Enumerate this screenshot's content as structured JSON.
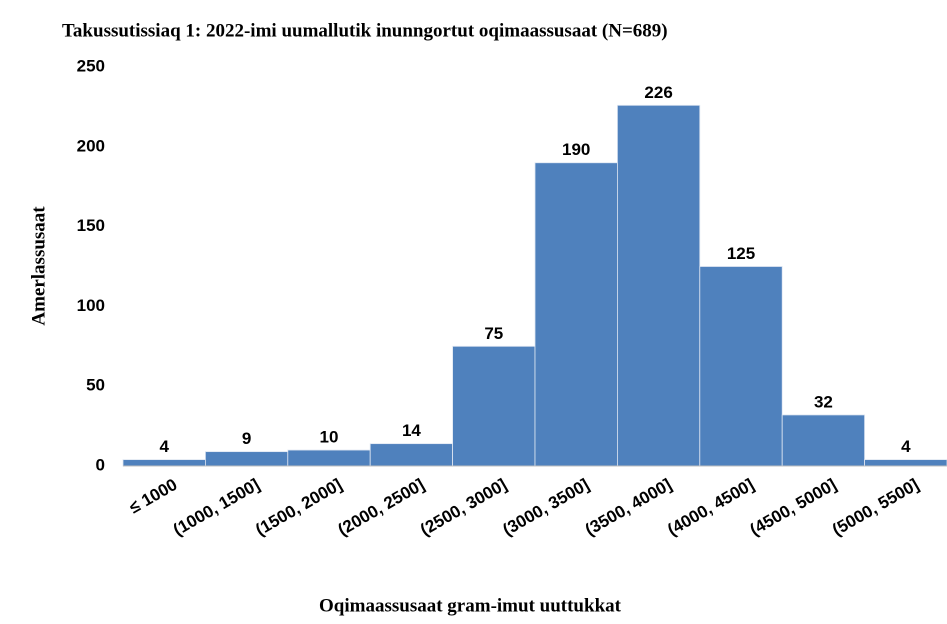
{
  "chart_data": {
    "type": "bar",
    "title": "Takussutissiaq 1: 2022-imi uumallutik inunngortut oqimaassusaat  (N=689)",
    "x_label": "Oqimaassusaat gram-imut uuttukkat",
    "y_label": "Amerlassusaat",
    "categories": [
      "≤ 1000",
      "(1000, 1500]",
      "(1500, 2000]",
      "(2000, 2500]",
      "(2500, 3000]",
      "(3000, 3500]",
      "(3500, 4000]",
      "(4000, 4500]",
      "(4500, 5000]",
      "(5000, 5500]"
    ],
    "values": [
      4,
      9,
      10,
      14,
      75,
      190,
      226,
      125,
      32,
      4
    ],
    "color": "#4f81bd",
    "ylim": [
      0,
      250
    ],
    "yticks": [
      0,
      50,
      100,
      150,
      200,
      250
    ],
    "grid": false
  }
}
